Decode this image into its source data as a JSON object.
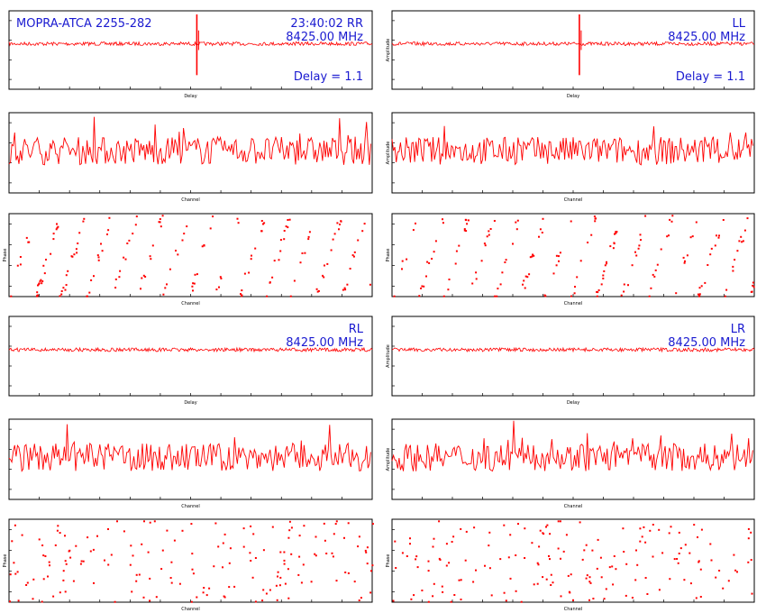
{
  "colors": {
    "trace": "#ff0000",
    "annotation": "#1a1ad0",
    "axes": "#000000",
    "background": "#ffffff"
  },
  "chart_data": [
    {
      "type": "line",
      "id": "rr-delay",
      "xlabel": "Delay",
      "ylabel": "",
      "xlim": [
        -32,
        32
      ],
      "ylim": [
        -1,
        1
      ],
      "annotations": {
        "source": "MOPRA-ATCA 2255-282",
        "time_pol": "23:40:02  RR",
        "freq": "8425.00 MHz",
        "delay": "Delay = 1.1"
      },
      "peak": {
        "x": 1.1,
        "y": 0.85
      }
    },
    {
      "type": "line",
      "id": "ll-delay",
      "xlabel": "Delay",
      "ylabel": "Amplitude",
      "xlim": [
        -32,
        32
      ],
      "ylim": [
        -1,
        1
      ],
      "annotations": {
        "pol": "LL",
        "freq": "8425.00 MHz",
        "delay": "Delay = 1.1"
      },
      "peak": {
        "x": 1.1,
        "y": 0.8
      }
    },
    {
      "type": "line",
      "id": "rr-amp",
      "xlabel": "Channel",
      "ylabel": "",
      "xlim": [
        0,
        256
      ],
      "ylim": [
        0,
        1
      ]
    },
    {
      "type": "line",
      "id": "ll-amp",
      "xlabel": "Channel",
      "ylabel": "Amplitude",
      "xlim": [
        0,
        256
      ],
      "ylim": [
        0,
        1
      ]
    },
    {
      "type": "scatter",
      "id": "rr-phase",
      "xlabel": "Channel",
      "ylabel": "Phase",
      "xlim": [
        0,
        256
      ],
      "ylim": [
        -180,
        180
      ]
    },
    {
      "type": "scatter",
      "id": "ll-phase",
      "xlabel": "Channel",
      "ylabel": "Phase",
      "xlim": [
        0,
        256
      ],
      "ylim": [
        -180,
        180
      ]
    },
    {
      "type": "line",
      "id": "rl-delay",
      "xlabel": "Delay",
      "ylabel": "",
      "xlim": [
        -32,
        32
      ],
      "ylim": [
        -1,
        1
      ],
      "annotations": {
        "pol": "RL",
        "freq": "8425.00 MHz"
      }
    },
    {
      "type": "line",
      "id": "lr-delay",
      "xlabel": "Delay",
      "ylabel": "Amplitude",
      "xlim": [
        -32,
        32
      ],
      "ylim": [
        -1,
        1
      ],
      "annotations": {
        "pol": "LR",
        "freq": "8425.00 MHz"
      }
    },
    {
      "type": "line",
      "id": "rl-amp",
      "xlabel": "Channel",
      "ylabel": "",
      "xlim": [
        0,
        256
      ],
      "ylim": [
        0,
        1
      ]
    },
    {
      "type": "line",
      "id": "lr-amp",
      "xlabel": "Channel",
      "ylabel": "Amplitude",
      "xlim": [
        0,
        256
      ],
      "ylim": [
        0,
        1
      ]
    },
    {
      "type": "scatter",
      "id": "rl-phase",
      "xlabel": "Channel",
      "ylabel": "Phase",
      "xlim": [
        0,
        256
      ],
      "ylim": [
        -180,
        180
      ]
    },
    {
      "type": "scatter",
      "id": "lr-phase",
      "xlabel": "Channel",
      "ylabel": "Phase",
      "xlim": [
        0,
        256
      ],
      "ylim": [
        -180,
        180
      ]
    }
  ]
}
